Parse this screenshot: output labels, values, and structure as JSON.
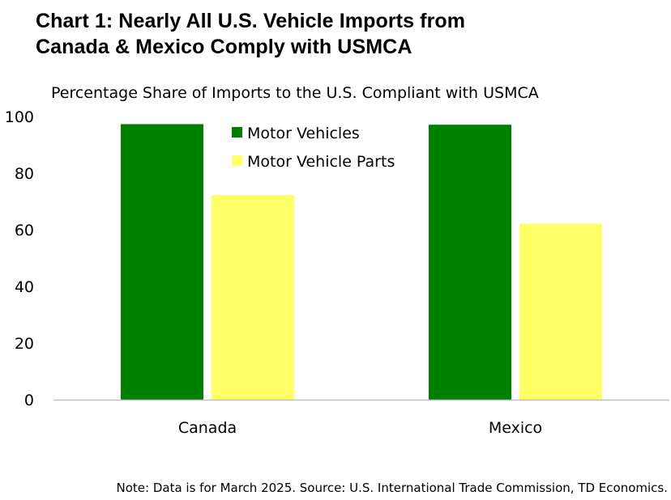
{
  "title_lines": [
    "Chart 1: Nearly All U.S. Vehicle Imports from",
    "Canada & Mexico Comply with USMCA"
  ],
  "note": "Note: Data is for March 2025. Source: U.S. International Trade Commission, TD Economics.",
  "colors": {
    "motor_vehicles": "#008000",
    "motor_vehicle_parts": "#ffff66",
    "axis": "#bfbfbf"
  },
  "chart_data": {
    "type": "bar",
    "title": "Percentage Share of Imports to the U.S. Compliant with USMCA",
    "categories": [
      "Canada",
      "Mexico"
    ],
    "series": [
      {
        "name": "Motor Vehicles",
        "values": [
          97.3,
          97.1
        ],
        "color": "#008000"
      },
      {
        "name": "Motor Vehicle Parts",
        "values": [
          72.2,
          62.1
        ],
        "color": "#ffff66"
      }
    ],
    "ylim": [
      0,
      100
    ],
    "yticks": [
      0,
      20,
      40,
      60,
      80,
      100
    ],
    "grid": false,
    "legend": "top-center"
  }
}
